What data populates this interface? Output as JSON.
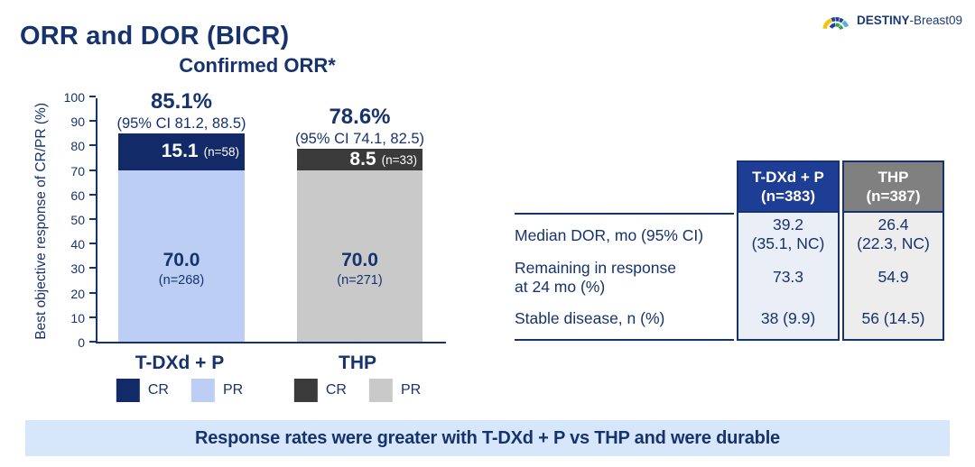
{
  "logo": {
    "study": "DESTINY",
    "suffix": "-Breast09"
  },
  "page": {
    "title": "ORR and DOR (BICR)"
  },
  "chart_data": {
    "type": "bar",
    "stacked": true,
    "title": "Confirmed ORR*",
    "ylabel": "Best objective response of CR/PR (%)",
    "ylim": [
      0,
      100
    ],
    "yticks": [
      0,
      10,
      20,
      30,
      40,
      50,
      60,
      70,
      80,
      90,
      100
    ],
    "categories": [
      "T-DXd + P",
      "THP"
    ],
    "series": [
      {
        "name": "PR",
        "values": [
          70.0,
          70.0
        ],
        "labels": [
          "70.0",
          "70.0"
        ],
        "sublabels": [
          "(n=268)",
          "(n=271)"
        ],
        "colors": [
          "#bdcef4",
          "#c9c9c9"
        ]
      },
      {
        "name": "CR",
        "values": [
          15.1,
          8.5
        ],
        "labels": [
          "15.1",
          "8.5"
        ],
        "sublabels": [
          "(n=58)",
          "(n=33)"
        ],
        "colors": [
          "#122a67",
          "#3b3b3b"
        ]
      }
    ],
    "totals": [
      "85.1%",
      "78.6%"
    ],
    "cis": [
      "(95% CI 81.2, 88.5)",
      "(95% CI 74.1, 82.5)"
    ],
    "legend_position": "bottom"
  },
  "legend": {
    "groups": [
      {
        "items": [
          {
            "label": "CR",
            "color": "#122a67"
          },
          {
            "label": "PR",
            "color": "#bdcef4"
          }
        ]
      },
      {
        "items": [
          {
            "label": "CR",
            "color": "#3b3b3b"
          },
          {
            "label": "PR",
            "color": "#c9c9c9"
          }
        ]
      }
    ]
  },
  "table": {
    "headers": [
      {
        "text": "T-DXd + P\n(n=383)",
        "bg": "#1e3d94"
      },
      {
        "text": "THP\n(n=387)",
        "bg": "#808080"
      }
    ],
    "column_bgs": [
      "#eaeef7",
      "#ededed"
    ],
    "rows": [
      {
        "label": "Median DOR, mo (95% CI)",
        "values": [
          "39.2\n(35.1, NC)",
          "26.4\n(22.3, NC)"
        ]
      },
      {
        "label": "Remaining in response\nat 24 mo (%)",
        "values": [
          "73.3",
          "54.9"
        ]
      },
      {
        "label": "Stable disease, n (%)",
        "values": [
          "38 (9.9)",
          "56 (14.5)"
        ]
      }
    ]
  },
  "banner": {
    "text": "Response rates were greater with T-DXd + P vs THP and were durable"
  }
}
